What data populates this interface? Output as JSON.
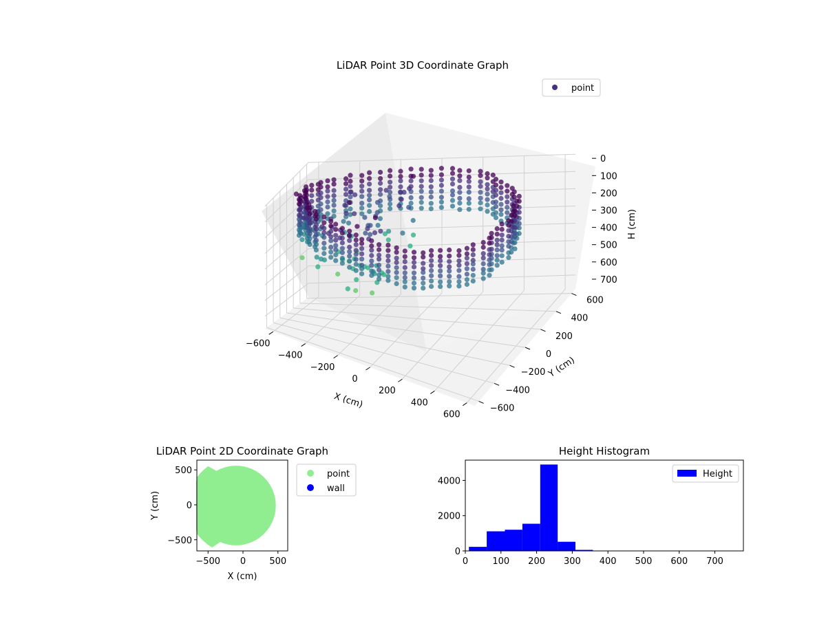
{
  "chart_data": [
    {
      "type": "scatter",
      "subtype": "3d",
      "title": "LiDAR Point 3D Coordinate Graph",
      "xlabel": "X (cm)",
      "ylabel": "Y (cm)",
      "zlabel": "H (cm)",
      "xlim": [
        -650,
        650
      ],
      "ylim": [
        -650,
        650
      ],
      "zlim": [
        0,
        780
      ],
      "z_inverted": true,
      "xticks": [
        "−600",
        "−400",
        "−200",
        "0",
        "200",
        "400",
        "600"
      ],
      "yticks": [
        "−600",
        "−400",
        "−200",
        "0",
        "200",
        "400",
        "600"
      ],
      "zticks": [
        "0",
        "100",
        "200",
        "300",
        "400",
        "500",
        "600",
        "700"
      ],
      "grid": true,
      "legend": {
        "position": "top-right",
        "entries": [
          "point"
        ]
      },
      "colormap": "viridis",
      "series": [
        {
          "name": "point",
          "color": "#46307e",
          "description_shape": "ring of wall points, radius ≈ 560 cm, heights ≈ 0–300 cm, plus sparse scattered points"
        }
      ]
    },
    {
      "type": "scatter",
      "title": "LiDAR Point 2D Coordinate Graph",
      "xlabel": "X (cm)",
      "ylabel": "Y (cm)",
      "xlim": [
        -660,
        640
      ],
      "ylim": [
        -660,
        640
      ],
      "xticks": [
        "−500",
        "0",
        "500"
      ],
      "yticks": [
        "−500",
        "0",
        "500"
      ],
      "legend": {
        "position": "outside right",
        "entries": [
          "point",
          "wall"
        ]
      },
      "series": [
        {
          "name": "point",
          "color": "#90ee90"
        },
        {
          "name": "wall",
          "color": "#0000ff"
        }
      ]
    },
    {
      "type": "bar",
      "subtype": "histogram",
      "title": "Height Histogram",
      "xlim": [
        0,
        780
      ],
      "ylim": [
        0,
        5150
      ],
      "xticks": [
        "0",
        "100",
        "200",
        "300",
        "400",
        "500",
        "600",
        "700"
      ],
      "yticks": [
        "0",
        "2000",
        "4000"
      ],
      "legend": {
        "position": "top-right",
        "entries": [
          "Height"
        ]
      },
      "color": "#0000ff",
      "bins": [
        {
          "x0": 10,
          "x1": 60,
          "value": 230
        },
        {
          "x0": 60,
          "x1": 111,
          "value": 1110
        },
        {
          "x0": 111,
          "x1": 160,
          "value": 1200
        },
        {
          "x0": 160,
          "x1": 210,
          "value": 1540
        },
        {
          "x0": 210,
          "x1": 259,
          "value": 4900
        },
        {
          "x0": 259,
          "x1": 309,
          "value": 520
        },
        {
          "x0": 309,
          "x1": 358,
          "value": 60
        },
        {
          "x0": 358,
          "x1": 408,
          "value": 5
        },
        {
          "x0": 408,
          "x1": 458,
          "value": 3
        },
        {
          "x0": 458,
          "x1": 508,
          "value": 2
        },
        {
          "x0": 508,
          "x1": 558,
          "value": 2
        },
        {
          "x0": 558,
          "x1": 608,
          "value": 1
        },
        {
          "x0": 608,
          "x1": 658,
          "value": 1
        },
        {
          "x0": 658,
          "x1": 708,
          "value": 1
        },
        {
          "x0": 708,
          "x1": 758,
          "value": 1
        }
      ]
    }
  ]
}
